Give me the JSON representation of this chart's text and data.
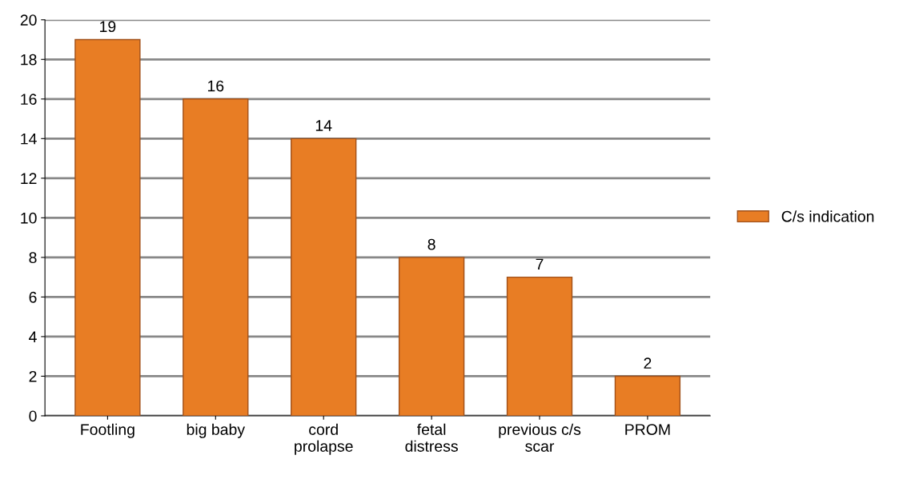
{
  "chart_data": {
    "type": "bar",
    "categories": [
      "Footling",
      "big baby",
      "cord\nprolapse",
      "fetal\ndistress",
      "previous c/s\nscar",
      "PROM"
    ],
    "series": [
      {
        "name": "C/s indication",
        "color": "#e87d24",
        "values": [
          19,
          16,
          14,
          8,
          7,
          2
        ]
      }
    ],
    "ylim": [
      0,
      20
    ],
    "yticks": [
      0,
      2,
      4,
      6,
      8,
      10,
      12,
      14,
      16,
      18,
      20
    ],
    "data_labels": true,
    "grid": "y",
    "legend": "right"
  }
}
